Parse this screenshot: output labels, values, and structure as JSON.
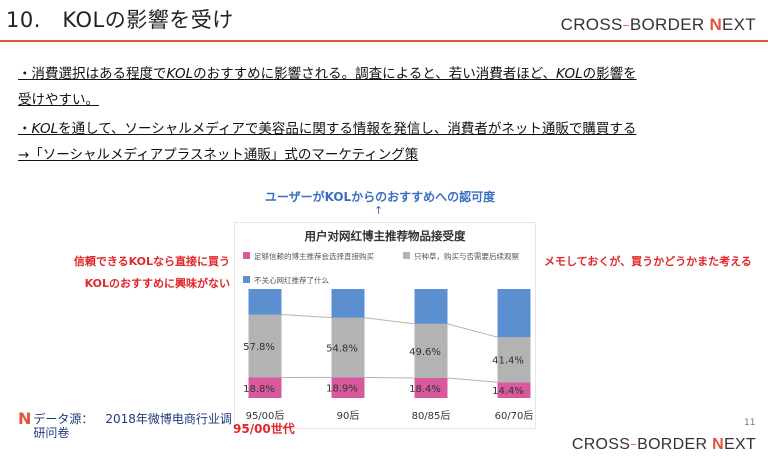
{
  "header": {
    "title": "10.　KOLの影響を受け",
    "brand": {
      "left": "CROSS",
      "dash": "−",
      "right": "BORDER",
      "n": "N",
      "ext": "EXT"
    }
  },
  "body": {
    "line1_a": "・消費選択はある程度で",
    "line1_kol": "KOL",
    "line1_b": "のおすすめに影響される。調査によると、若い消費者ほど、",
    "line1_kol2": "KOL",
    "line1_c": "の影響を",
    "line2": "受けやすい。",
    "line3_a": "・",
    "line3_kol": "KOL",
    "line3_b": "を通して、ソーシャルメディアで美容品に関する情報を発信し、消費者がネット通販で購買する",
    "line4": "→「ソーシャルメディアプラスネット通販」式のマーケティング策"
  },
  "chart_labels": {
    "top_label": "ユーザーがKOLからのおすすめへの認可度",
    "arrow": "↑",
    "left_label_1": "信頼できるKOLなら直接に買う",
    "left_label_2": "KOLのおすすめに興味がない",
    "right_label": "メモしておくが、買うかどうかまた考える"
  },
  "chart_data": {
    "type": "bar",
    "title": "用户对网红博主推荐物品接受度",
    "categories": [
      "95/00后",
      "90后",
      "80/85后",
      "60/70后"
    ],
    "series": [
      {
        "name": "足够信赖的博主推荐会选择直接购买",
        "color": "#d65a9c",
        "values": [
          18.8,
          18.9,
          18.4,
          14.4
        ],
        "labels": [
          "18.8%",
          "18.9%",
          "18.4%",
          "14.4%"
        ]
      },
      {
        "name": "只种草，购买与否需要后续观察",
        "color": "#b3b3b3",
        "values": [
          57.8,
          54.8,
          49.6,
          41.4
        ],
        "labels": [
          "57.8%",
          "54.8%",
          "49.6%",
          "41.4%"
        ]
      },
      {
        "name": "不关心网红推荐了什么",
        "color": "#5b8fd0",
        "values": [
          23.4,
          26.3,
          32.0,
          44.2
        ]
      }
    ],
    "ylim": [
      0,
      100
    ],
    "stacked": true
  },
  "footer": {
    "source": "データ源： 2018年微博电商行业调研问卷",
    "source_mark": "N",
    "generation_label": "95/00世代",
    "page_number": "11"
  },
  "colors": {
    "accent": "#e0553a",
    "label_red": "#e0272a",
    "blue_text": "#3a6fc4"
  }
}
